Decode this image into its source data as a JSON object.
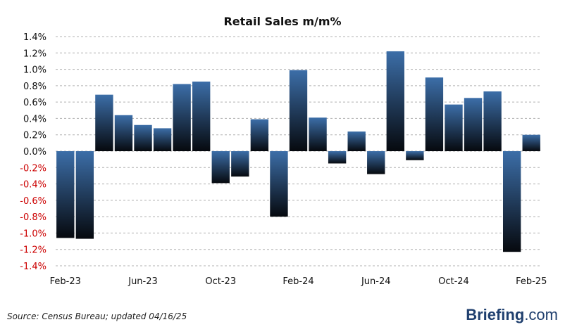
{
  "chart_data": {
    "type": "bar",
    "title": "Retail Sales m/m%",
    "categories": [
      "Feb-23",
      "Mar-23",
      "Apr-23",
      "May-23",
      "Jun-23",
      "Jul-23",
      "Aug-23",
      "Sep-23",
      "Oct-23",
      "Nov-23",
      "Dec-23",
      "Jan-24",
      "Feb-24",
      "Mar-24",
      "Apr-24",
      "May-24",
      "Jun-24",
      "Jul-24",
      "Aug-24",
      "Sep-24",
      "Oct-24",
      "Nov-24",
      "Dec-24",
      "Jan-25",
      "Feb-25"
    ],
    "values": [
      -1.06,
      -1.07,
      0.69,
      0.44,
      0.32,
      0.28,
      0.82,
      0.85,
      -0.39,
      -0.31,
      0.39,
      -0.8,
      0.99,
      0.41,
      -0.15,
      0.24,
      -0.28,
      1.22,
      -0.11,
      0.9,
      0.57,
      0.65,
      0.73,
      -1.23,
      0.2
    ],
    "xtick_labels": [
      "Feb-23",
      "Jun-23",
      "Oct-23",
      "Feb-24",
      "Jun-24",
      "Oct-24",
      "Feb-25"
    ],
    "yticks": [
      "1.4%",
      "1.2%",
      "1.0%",
      "0.8%",
      "0.6%",
      "0.4%",
      "0.2%",
      "0.0%",
      "-0.2%",
      "-0.4%",
      "-0.6%",
      "-0.8%",
      "-1.0%",
      "-1.2%",
      "-1.4%"
    ],
    "ylim": [
      -1.4,
      1.4
    ],
    "xlabel": "",
    "ylabel": "",
    "grid": true,
    "colors": {
      "bar_top": "#3c6ea8",
      "bar_bottom": "#06090e",
      "negative_tick": "#cc0000",
      "positive_tick": "#111111",
      "grid": "#b0b0b0"
    }
  },
  "footer": {
    "source": "Source:  Census Bureau;  updated  04/16/25",
    "brand_name": "Briefing",
    "brand_suffix": ".com"
  }
}
